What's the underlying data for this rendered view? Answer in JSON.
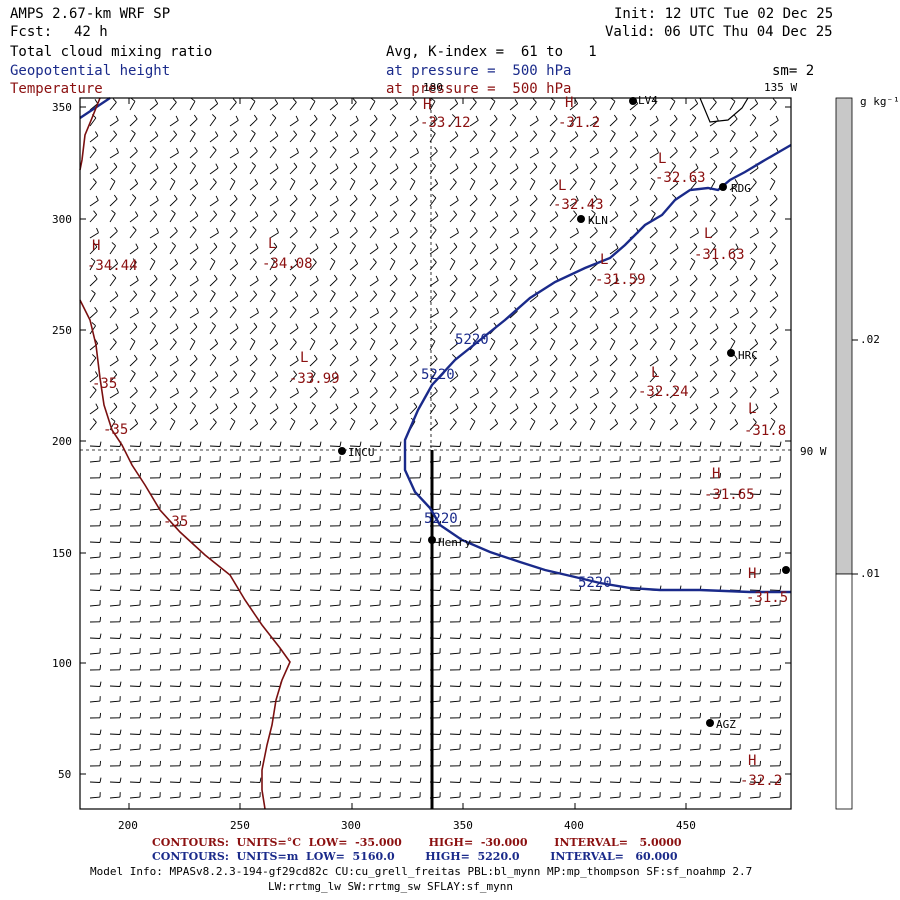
{
  "header": {
    "model": "AMPS 2.67-km WRF SP",
    "forecast_label": "Fcst:",
    "forecast_value": "42 h",
    "init": "Init: 12 UTC Tue 02 Dec 25",
    "valid": "Valid: 06 UTC Thu 04 Dec 25",
    "field1": "Total cloud mixing ratio",
    "field2": "Geopotential height",
    "field3": "Temperature",
    "avg": "Avg, K-index =  61 to   1",
    "pressure1": "at pressure =  500 hPa",
    "pressure2": "at pressure =  500 hPa",
    "sm": "sm= 2"
  },
  "map_labels": {
    "lon_180": "180",
    "lon_135w": "135 W",
    "lon_90w": "90 W"
  },
  "stations": [
    {
      "name": "LV4"
    },
    {
      "name": "RDG"
    },
    {
      "name": "KLN"
    },
    {
      "name": "HRC"
    },
    {
      "name": "INCU"
    },
    {
      "name": "Henry"
    },
    {
      "name": "AGZ"
    }
  ],
  "temperature_centers": [
    {
      "type": "H",
      "value": "-33.12"
    },
    {
      "type": "H",
      "value": "-31.2"
    },
    {
      "type": "L",
      "value": "-32.63"
    },
    {
      "type": "L",
      "value": "-32.43"
    },
    {
      "type": "H",
      "value": "-34.44"
    },
    {
      "type": "L",
      "value": "-34.08"
    },
    {
      "type": "L",
      "value": "-31.59"
    },
    {
      "type": "L",
      "value": "-31.63"
    },
    {
      "type": "L",
      "value": "-33.99"
    },
    {
      "type": "L",
      "value": "-32.24"
    },
    {
      "type": "L",
      "value": "-31.8"
    },
    {
      "type": "H",
      "value": "-31.65"
    },
    {
      "type": "H",
      "value": "-31.5"
    },
    {
      "type": "H",
      "value": "-32.2"
    }
  ],
  "temperature_contour_labels": [
    "-35",
    "-35",
    "-35"
  ],
  "height_contour_labels": [
    "5220",
    "5220",
    "5220",
    "5220"
  ],
  "axes": {
    "x_ticks": [
      "200",
      "250",
      "300",
      "350",
      "400",
      "450"
    ],
    "y_ticks": [
      "350",
      "300",
      "250",
      "200",
      "150",
      "100",
      "50"
    ]
  },
  "colorbar": {
    "unit": "g kg⁻¹",
    "levels": [
      ".02",
      ".01"
    ],
    "fill_color": "#c8c8c8"
  },
  "footer": {
    "temp_contours": "CONTOURS:  UNITS=°C  LOW=  -35.000       HIGH=  -30.000       INTERVAL=   5.0000",
    "height_contours": "CONTOURS:  UNITS=m  LOW=  5160.0        HIGH=  5220.0        INTERVAL=   60.000",
    "model_info": "Model Info: MPASv8.2.3-194-gf29cd82c CU:cu_grell_freitas PBL:bl_mynn MP:mp_thompson SF:sf_noahmp 2.7",
    "model_info2": "LW:rrtmg_lw SW:rrtmg_sw SFLAY:sf_mynn"
  },
  "colors": {
    "temperature": "#8b1010",
    "height": "#1a2a8a",
    "text": "#000000"
  }
}
